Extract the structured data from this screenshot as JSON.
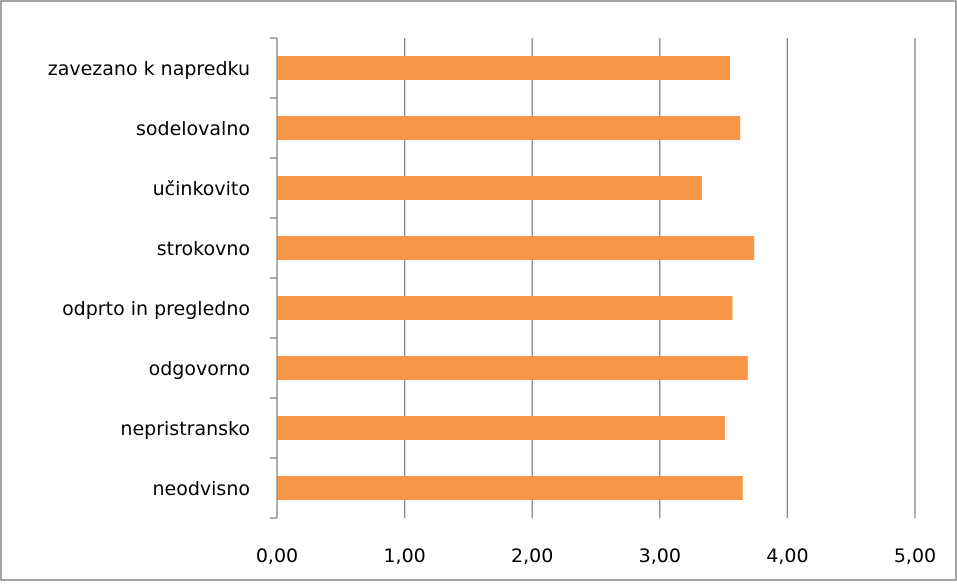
{
  "chart_data": {
    "type": "bar",
    "orientation": "horizontal",
    "title": "",
    "xlabel": "",
    "ylabel": "",
    "categories": [
      "zavezano k napredku",
      "sodelovalno",
      "učinkovito",
      "strokovno",
      "odprto in pregledno",
      "odgovorno",
      "nepristransko",
      "neodvisno"
    ],
    "values": [
      3.55,
      3.63,
      3.33,
      3.74,
      3.57,
      3.69,
      3.51,
      3.65
    ],
    "xlim": [
      0,
      5
    ],
    "xticks": [
      0,
      1,
      2,
      3,
      4,
      5
    ],
    "xtick_labels": [
      "0,00",
      "1,00",
      "2,00",
      "3,00",
      "4,00",
      "5,00"
    ],
    "grid": "vertical major gridlines",
    "legend": "none",
    "bar_color": "#f79646",
    "gridline_color": "#868686",
    "axis_color": "#868686",
    "frame_color": "#868686"
  }
}
